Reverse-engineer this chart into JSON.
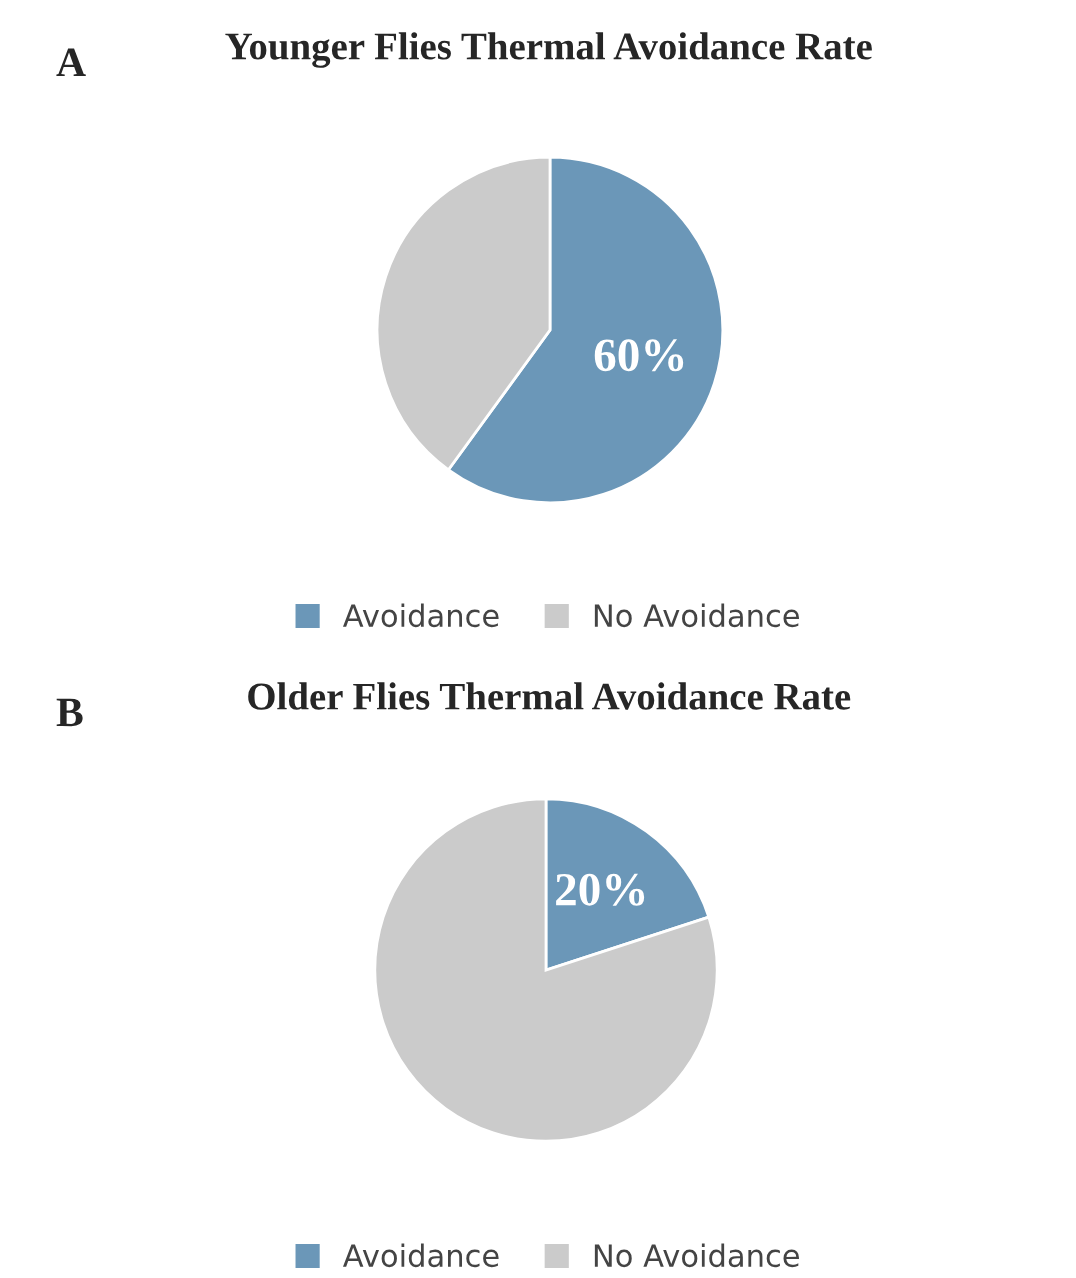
{
  "chart_data": [
    {
      "type": "pie",
      "title": "Younger Flies Thermal Avoidance Rate",
      "categories": [
        "Avoidance",
        "No Avoidance"
      ],
      "values": [
        60,
        40
      ],
      "colors": [
        "#6b97b8",
        "#cbcbcb"
      ],
      "value_labels": [
        "60%",
        null
      ],
      "legend": "bottom",
      "annotations": [
        "A"
      ]
    },
    {
      "type": "pie",
      "title": "Older Flies Thermal Avoidance Rate",
      "categories": [
        "Avoidance",
        "No Avoidance"
      ],
      "values": [
        20,
        80
      ],
      "colors": [
        "#6b97b8",
        "#cbcbcb"
      ],
      "value_labels": [
        "20%",
        null
      ],
      "legend": "bottom",
      "annotations": [
        "B"
      ]
    }
  ]
}
